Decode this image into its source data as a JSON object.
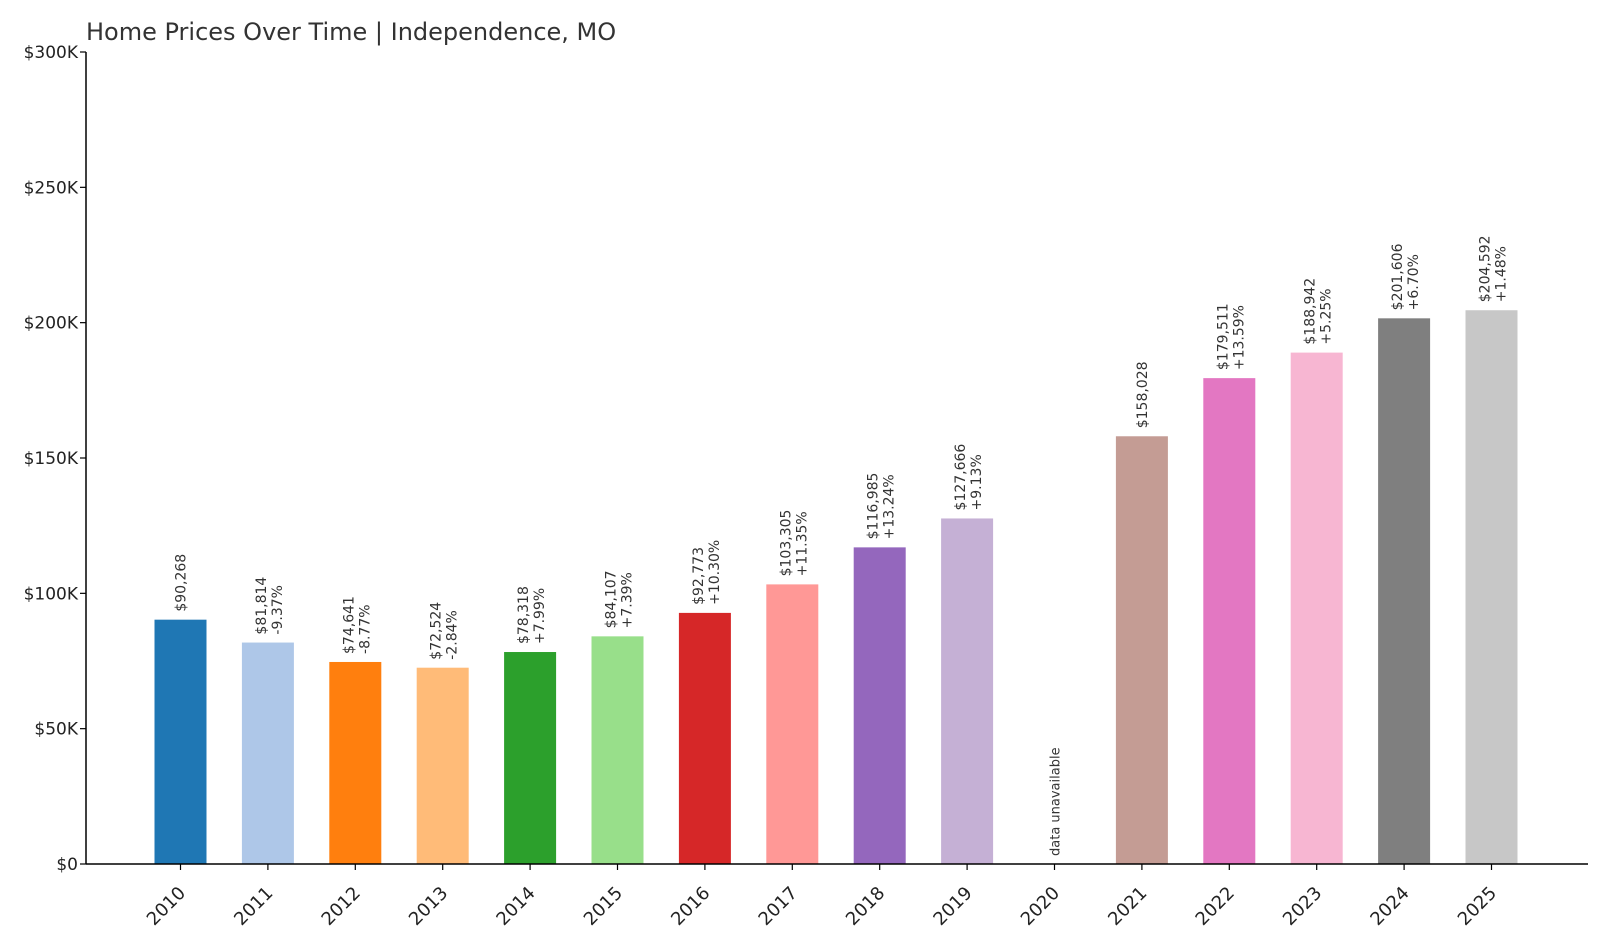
{
  "chart_data": {
    "type": "bar",
    "title": "Home Prices Over Time | Independence, MO",
    "xlabel": "",
    "ylabel": "",
    "ylim": [
      0,
      300000
    ],
    "yticks": [
      0,
      50000,
      100000,
      150000,
      200000,
      250000,
      300000
    ],
    "ytick_labels": [
      "$0",
      "$50K",
      "$100K",
      "$150K",
      "$200K",
      "$250K",
      "$300K"
    ],
    "grid": false,
    "categories": [
      "2010",
      "2011",
      "2012",
      "2013",
      "2014",
      "2015",
      "2016",
      "2017",
      "2018",
      "2019",
      "2020",
      "2021",
      "2022",
      "2023",
      "2024",
      "2025"
    ],
    "values": [
      90268,
      81814,
      74641,
      72524,
      78318,
      84107,
      92773,
      103305,
      116985,
      127666,
      null,
      158028,
      179511,
      188942,
      201606,
      204592
    ],
    "value_labels": [
      "$90,268",
      "$81,814",
      "$74,641",
      "$72,524",
      "$78,318",
      "$84,107",
      "$92,773",
      "$103,305",
      "$116,985",
      "$127,666",
      "",
      "$158,028",
      "$179,511",
      "$188,942",
      "$201,606",
      "$204,592"
    ],
    "change_labels": [
      "",
      "-9.37%",
      "-8.77%",
      "-2.84%",
      "+7.99%",
      "+7.39%",
      "+10.30%",
      "+11.35%",
      "+13.24%",
      "+9.13%",
      "",
      "",
      "+13.59%",
      "+5.25%",
      "+6.70%",
      "+1.48%"
    ],
    "missing_label": "data unavailable",
    "colors": [
      "#1f77b4",
      "#aec7e8",
      "#ff7f0e",
      "#ffbb78",
      "#2ca02c",
      "#98df8a",
      "#d62728",
      "#ff9896",
      "#9467bd",
      "#c5b0d5",
      "#8c564b",
      "#c49c94",
      "#e377c2",
      "#f7b6d2",
      "#7f7f7f",
      "#c7c7c7"
    ]
  }
}
